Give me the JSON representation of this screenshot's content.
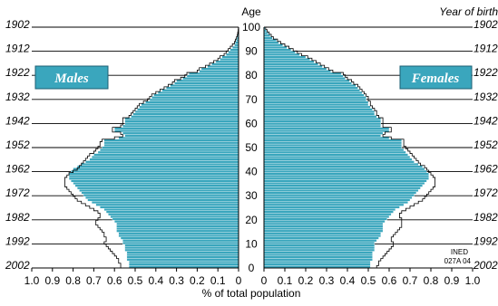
{
  "chart_data": {
    "type": "bar",
    "subtype": "population-pyramid",
    "age_axis_title": "Age",
    "birth_axis_title": "Year of birth",
    "xlabel": "% of total population",
    "source_note": [
      "INED",
      "027A 04"
    ],
    "legend": {
      "males": "Males",
      "females": "Females"
    },
    "xlim": [
      0,
      1.0
    ],
    "x_ticks": [
      "1.0",
      "0.9",
      "0.8",
      "0.7",
      "0.6",
      "0.5",
      "0.4",
      "0.3",
      "0.2",
      "0.1",
      "0",
      "0",
      "0.1",
      "0.2",
      "0.3",
      "0.4",
      "0.5",
      "0.6",
      "0.7",
      "0.8",
      "0.9",
      "1.0"
    ],
    "age_ticks": [
      "100",
      "90",
      "80",
      "70",
      "60",
      "50",
      "40",
      "30",
      "20",
      "10",
      "0"
    ],
    "birth_ticks": [
      "1902",
      "1912",
      "1922",
      "1932",
      "1942",
      "1952",
      "1962",
      "1972",
      "1982",
      "1992",
      "2002"
    ],
    "ages": [
      0,
      1,
      2,
      3,
      4,
      5,
      6,
      7,
      8,
      9,
      10,
      11,
      12,
      13,
      14,
      15,
      16,
      17,
      18,
      19,
      20,
      21,
      22,
      23,
      24,
      25,
      26,
      27,
      28,
      29,
      30,
      31,
      32,
      33,
      34,
      35,
      36,
      37,
      38,
      39,
      40,
      41,
      42,
      43,
      44,
      45,
      46,
      47,
      48,
      49,
      50,
      51,
      52,
      53,
      54,
      55,
      56,
      57,
      58,
      59,
      60,
      61,
      62,
      63,
      64,
      65,
      66,
      67,
      68,
      69,
      70,
      71,
      72,
      73,
      74,
      75,
      76,
      77,
      78,
      79,
      80,
      81,
      82,
      83,
      84,
      85,
      86,
      87,
      88,
      89,
      90,
      91,
      92,
      93,
      94,
      95,
      96,
      97,
      98,
      99,
      100
    ],
    "series": [
      {
        "name": "Males",
        "color": "#3aa6bd",
        "values": [
          0.53,
          0.53,
          0.53,
          0.54,
          0.54,
          0.54,
          0.54,
          0.55,
          0.55,
          0.55,
          0.56,
          0.56,
          0.57,
          0.58,
          0.58,
          0.59,
          0.59,
          0.59,
          0.59,
          0.6,
          0.61,
          0.62,
          0.63,
          0.64,
          0.65,
          0.67,
          0.69,
          0.71,
          0.73,
          0.74,
          0.75,
          0.76,
          0.77,
          0.78,
          0.79,
          0.8,
          0.81,
          0.82,
          0.82,
          0.82,
          0.81,
          0.8,
          0.78,
          0.76,
          0.74,
          0.72,
          0.71,
          0.7,
          0.68,
          0.67,
          0.66,
          0.65,
          0.65,
          0.65,
          0.58,
          0.55,
          0.56,
          0.6,
          0.6,
          0.56,
          0.55,
          0.55,
          0.55,
          0.52,
          0.51,
          0.5,
          0.49,
          0.48,
          0.47,
          0.45,
          0.43,
          0.42,
          0.41,
          0.39,
          0.37,
          0.35,
          0.33,
          0.31,
          0.3,
          0.27,
          0.25,
          0.24,
          0.19,
          0.18,
          0.15,
          0.13,
          0.11,
          0.09,
          0.08,
          0.06,
          0.05,
          0.04,
          0.03,
          0.02,
          0.016,
          0.012,
          0.008,
          0.005,
          0.003,
          0.002,
          0.001
        ]
      },
      {
        "name": "Females",
        "color": "#3aa6bd",
        "values": [
          0.51,
          0.51,
          0.51,
          0.52,
          0.52,
          0.52,
          0.52,
          0.53,
          0.53,
          0.53,
          0.53,
          0.54,
          0.55,
          0.56,
          0.56,
          0.57,
          0.57,
          0.57,
          0.57,
          0.58,
          0.59,
          0.6,
          0.61,
          0.62,
          0.63,
          0.65,
          0.67,
          0.69,
          0.7,
          0.71,
          0.72,
          0.73,
          0.74,
          0.75,
          0.76,
          0.77,
          0.78,
          0.79,
          0.79,
          0.79,
          0.78,
          0.77,
          0.76,
          0.74,
          0.72,
          0.71,
          0.7,
          0.69,
          0.68,
          0.67,
          0.66,
          0.66,
          0.66,
          0.66,
          0.6,
          0.56,
          0.57,
          0.6,
          0.6,
          0.56,
          0.56,
          0.56,
          0.56,
          0.54,
          0.53,
          0.53,
          0.52,
          0.51,
          0.5,
          0.5,
          0.49,
          0.49,
          0.48,
          0.47,
          0.46,
          0.45,
          0.44,
          0.42,
          0.41,
          0.39,
          0.38,
          0.37,
          0.32,
          0.3,
          0.28,
          0.26,
          0.24,
          0.22,
          0.2,
          0.17,
          0.15,
          0.13,
          0.11,
          0.09,
          0.07,
          0.06,
          0.04,
          0.03,
          0.02,
          0.012,
          0.006
        ]
      },
      {
        "name": "Males outline",
        "color": "#000000",
        "values": [
          0.57,
          0.57,
          0.58,
          0.58,
          0.59,
          0.6,
          0.61,
          0.62,
          0.63,
          0.64,
          0.65,
          0.64,
          0.64,
          0.65,
          0.65,
          0.66,
          0.67,
          0.68,
          0.69,
          0.69,
          0.68,
          0.67,
          0.67,
          0.68,
          0.7,
          0.72,
          0.74,
          0.76,
          0.78,
          0.79,
          0.8,
          0.81,
          0.82,
          0.83,
          0.84,
          0.84,
          0.84,
          0.84,
          0.83,
          0.82,
          0.8,
          0.78,
          0.77,
          0.76,
          0.75,
          0.74,
          0.73,
          0.72,
          0.7,
          0.69,
          0.68,
          0.67,
          0.67,
          0.66,
          0.6,
          0.56,
          0.57,
          0.61,
          0.61,
          0.57,
          0.56,
          0.56,
          0.56,
          0.53,
          0.52,
          0.51,
          0.5,
          0.49,
          0.48,
          0.46,
          0.44,
          0.43,
          0.42,
          0.4,
          0.38,
          0.36,
          0.34,
          0.32,
          0.31,
          0.28,
          0.26,
          0.25,
          0.2,
          0.19,
          0.16,
          0.14,
          0.12,
          0.1,
          0.09,
          0.07,
          0.06,
          0.05,
          0.04,
          0.03,
          0.02,
          0.015,
          0.01,
          0.006,
          0.004,
          0.002,
          0.001
        ]
      },
      {
        "name": "Females outline",
        "color": "#000000",
        "values": [
          0.54,
          0.55,
          0.55,
          0.56,
          0.57,
          0.58,
          0.59,
          0.6,
          0.61,
          0.62,
          0.62,
          0.61,
          0.61,
          0.62,
          0.63,
          0.64,
          0.65,
          0.66,
          0.66,
          0.66,
          0.66,
          0.65,
          0.65,
          0.66,
          0.68,
          0.7,
          0.72,
          0.74,
          0.76,
          0.77,
          0.78,
          0.79,
          0.8,
          0.81,
          0.82,
          0.82,
          0.82,
          0.82,
          0.81,
          0.8,
          0.79,
          0.78,
          0.77,
          0.75,
          0.74,
          0.73,
          0.72,
          0.71,
          0.7,
          0.69,
          0.68,
          0.67,
          0.67,
          0.67,
          0.61,
          0.57,
          0.58,
          0.61,
          0.61,
          0.57,
          0.57,
          0.57,
          0.57,
          0.55,
          0.54,
          0.54,
          0.53,
          0.52,
          0.51,
          0.51,
          0.5,
          0.5,
          0.49,
          0.48,
          0.47,
          0.46,
          0.45,
          0.43,
          0.42,
          0.4,
          0.39,
          0.38,
          0.33,
          0.31,
          0.29,
          0.27,
          0.25,
          0.23,
          0.21,
          0.18,
          0.16,
          0.14,
          0.12,
          0.1,
          0.08,
          0.065,
          0.045,
          0.035,
          0.025,
          0.015,
          0.008
        ]
      }
    ]
  }
}
